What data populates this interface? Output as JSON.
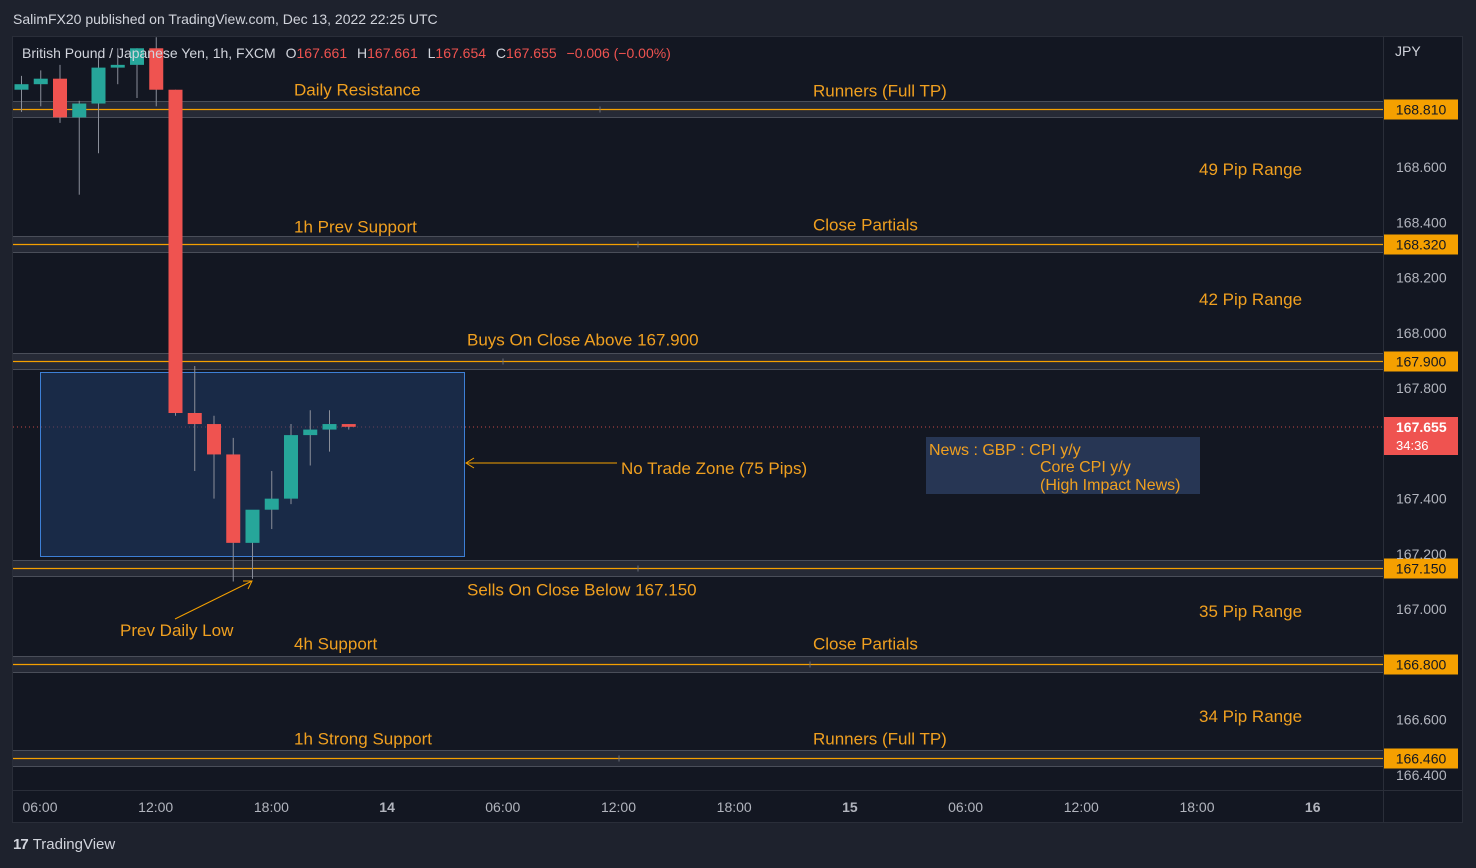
{
  "header": {
    "published": "SalimFX20 published on TradingView.com, Dec 13, 2022 22:25 UTC"
  },
  "symbol": {
    "name": "British Pound / Japanese Yen, 1h, FXCM",
    "o_label": "O",
    "o": "167.661",
    "h_label": "H",
    "h": "167.661",
    "l_label": "L",
    "l": "167.654",
    "c_label": "C",
    "c": "167.655",
    "change": "−0.006 (−0.00%)"
  },
  "currency": "JPY",
  "colors": {
    "up": "#26a69a",
    "down": "#ef5350",
    "level": "#f5a000",
    "text": "#f0a020",
    "zone": "#1f3a66",
    "zone_border": "#3d7fd6",
    "news_bg": "#2a3a5a"
  },
  "price_axis": [
    "168.600",
    "168.400",
    "168.200",
    "168.000",
    "167.800",
    "167.400",
    "167.200",
    "167.000",
    "166.600",
    "166.400"
  ],
  "time_axis": [
    {
      "label": "06:00",
      "bold": false
    },
    {
      "label": "12:00",
      "bold": false
    },
    {
      "label": "18:00",
      "bold": false
    },
    {
      "label": "14",
      "bold": true
    },
    {
      "label": "06:00",
      "bold": false
    },
    {
      "label": "12:00",
      "bold": false
    },
    {
      "label": "18:00",
      "bold": false
    },
    {
      "label": "15",
      "bold": true
    },
    {
      "label": "06:00",
      "bold": false
    },
    {
      "label": "12:00",
      "bold": false
    },
    {
      "label": "18:00",
      "bold": false
    },
    {
      "label": "16",
      "bold": true
    }
  ],
  "levels": [
    {
      "price": 168.81,
      "badge": "168.810",
      "left_label": "Daily Resistance",
      "right_label": "Runners (Full TP)"
    },
    {
      "price": 168.32,
      "badge": "168.320",
      "left_label": "1h Prev Support",
      "right_label": "Close Partials"
    },
    {
      "price": 167.9,
      "badge": "167.900",
      "left_label": "Buys On Close Above 167.900",
      "right_label": ""
    },
    {
      "price": 167.15,
      "badge": "167.150",
      "left_label": "Sells On Close Below 167.150",
      "right_label": ""
    },
    {
      "price": 166.8,
      "badge": "166.800",
      "left_label": "4h Support",
      "right_label": "Close Partials"
    },
    {
      "price": 166.46,
      "badge": "166.460",
      "left_label": "1h Strong Support",
      "right_label": "Runners (Full TP)"
    }
  ],
  "pip_ranges": [
    "49 Pip Range",
    "42 Pip Range",
    "35 Pip Range",
    "34 Pip Range"
  ],
  "current_price": {
    "value": "167.655",
    "countdown": "34:36"
  },
  "annotations": {
    "no_trade_zone": "No Trade Zone (75 Pips)",
    "prev_daily_low": "Prev Daily Low",
    "news_lines": [
      "News : GBP : CPI y/y",
      "Core CPI y/y",
      "(High Impact News)"
    ]
  },
  "candles": [
    {
      "o": 168.88,
      "h": 168.93,
      "l": 168.8,
      "c": 168.9
    },
    {
      "o": 168.9,
      "h": 168.95,
      "l": 168.82,
      "c": 168.92
    },
    {
      "o": 168.92,
      "h": 168.97,
      "l": 168.76,
      "c": 168.78
    },
    {
      "o": 168.78,
      "h": 168.84,
      "l": 168.5,
      "c": 168.83
    },
    {
      "o": 168.83,
      "h": 169.0,
      "l": 168.65,
      "c": 168.96
    },
    {
      "o": 168.96,
      "h": 169.03,
      "l": 168.9,
      "c": 168.97
    },
    {
      "o": 168.97,
      "h": 169.03,
      "l": 168.85,
      "c": 169.03
    },
    {
      "o": 169.03,
      "h": 169.07,
      "l": 168.82,
      "c": 168.88
    },
    {
      "o": 168.88,
      "h": 168.88,
      "l": 167.7,
      "c": 167.71
    },
    {
      "o": 167.71,
      "h": 167.88,
      "l": 167.5,
      "c": 167.67
    },
    {
      "o": 167.67,
      "h": 167.7,
      "l": 167.4,
      "c": 167.56
    },
    {
      "o": 167.56,
      "h": 167.62,
      "l": 167.1,
      "c": 167.24
    },
    {
      "o": 167.24,
      "h": 167.35,
      "l": 167.11,
      "c": 167.36
    },
    {
      "o": 167.36,
      "h": 167.5,
      "l": 167.29,
      "c": 167.4
    },
    {
      "o": 167.4,
      "h": 167.67,
      "l": 167.38,
      "c": 167.63
    },
    {
      "o": 167.63,
      "h": 167.72,
      "l": 167.52,
      "c": 167.65
    },
    {
      "o": 167.65,
      "h": 167.72,
      "l": 167.57,
      "c": 167.67
    },
    {
      "o": 167.67,
      "h": 167.67,
      "l": 167.65,
      "c": 167.66
    }
  ],
  "branding": {
    "logo_mark": "17",
    "name": "TradingView"
  }
}
